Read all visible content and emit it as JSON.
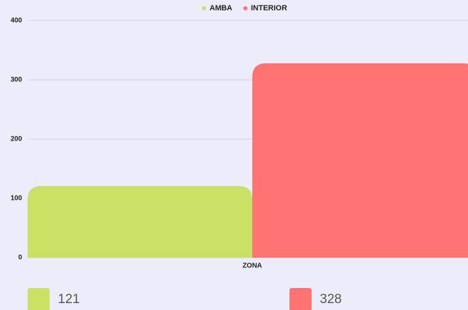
{
  "chart_data": {
    "type": "bar",
    "categories": [
      "ZONA"
    ],
    "series": [
      {
        "name": "AMBA",
        "color": "#c9e265",
        "values": [
          121
        ]
      },
      {
        "name": "INTERIOR",
        "color": "#ff7373",
        "values": [
          328
        ]
      }
    ],
    "ylim": [
      0,
      400
    ],
    "yticks": [
      0,
      100,
      200,
      300,
      400
    ],
    "grid": true,
    "legend": "top"
  }
}
